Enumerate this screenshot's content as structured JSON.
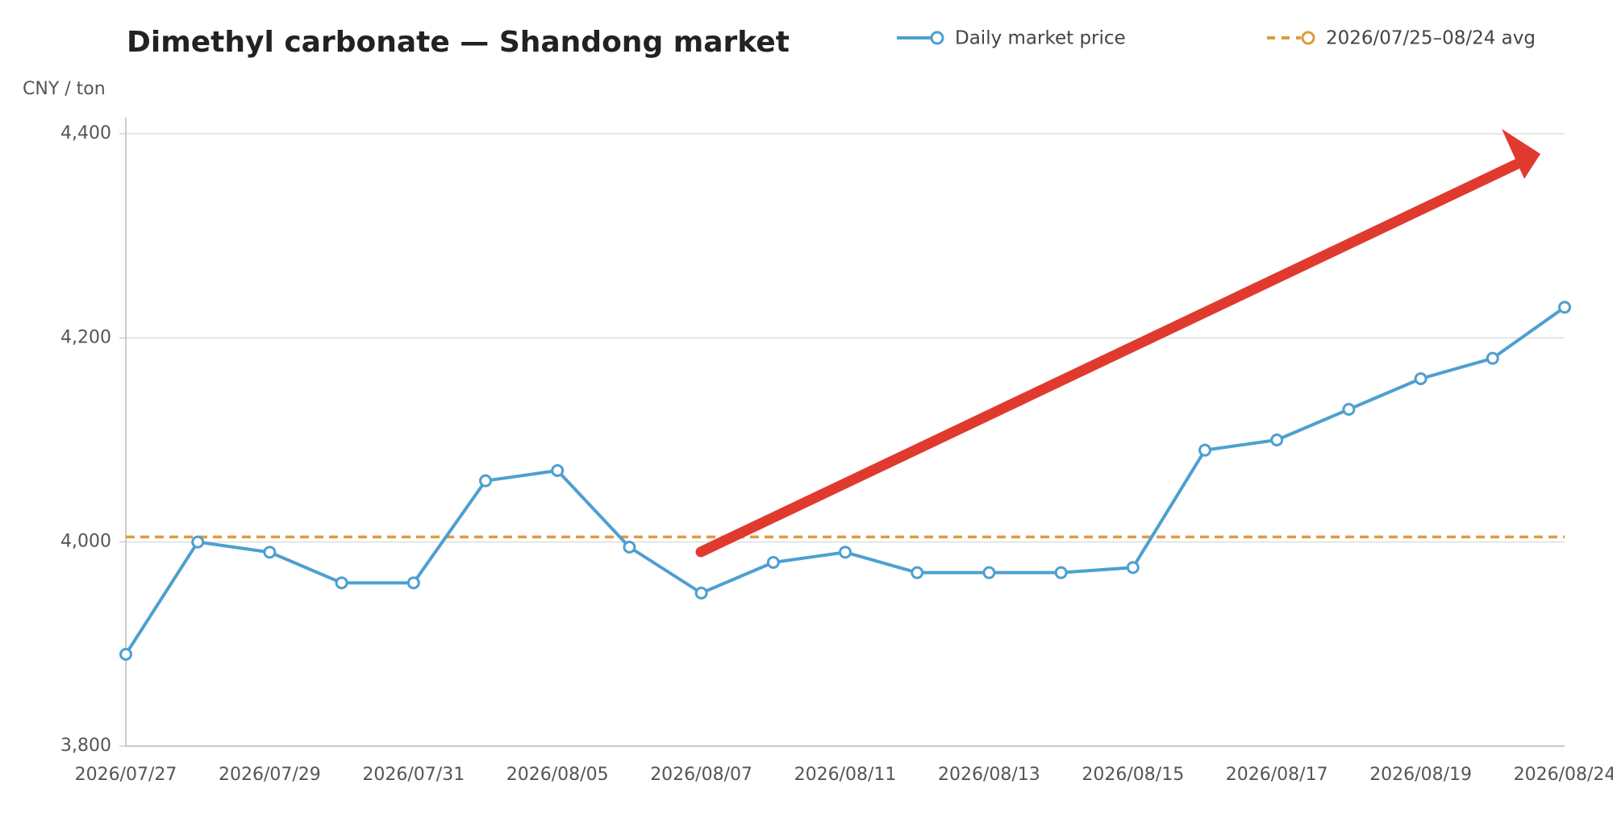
{
  "chart_data": {
    "type": "line",
    "title": "Dimethyl carbonate — Shandong market",
    "y_label": "CNY / ton",
    "categories": [
      "2026/07/27",
      null,
      "2026/07/29",
      null,
      "2026/07/31",
      null,
      "2026/08/05",
      null,
      "2026/08/07",
      null,
      "2026/08/11",
      null,
      "2026/08/13",
      null,
      "2026/08/15",
      null,
      "2026/08/17",
      null,
      "2026/08/19",
      null,
      "2026/08/24"
    ],
    "series": [
      {
        "name": "Daily market price",
        "color": "#4e9fd0",
        "values": [
          3890,
          4000,
          3990,
          3960,
          3960,
          4060,
          4070,
          3995,
          3950,
          3980,
          3990,
          3970,
          3970,
          3970,
          3975,
          4090,
          4100,
          4130,
          4160,
          4180,
          4230
        ]
      }
    ],
    "reference_line": {
      "name": "2026/07/25–08/24 avg",
      "color": "#e09a3e",
      "value": 4005
    },
    "ylim": [
      3800,
      4400
    ],
    "yticks": [
      {
        "value": 3800,
        "label": "3,800"
      },
      {
        "value": 4000,
        "label": "4,000"
      },
      {
        "value": 4200,
        "label": "4,200"
      },
      {
        "value": 4400,
        "label": "4,400"
      }
    ],
    "grid": true
  }
}
